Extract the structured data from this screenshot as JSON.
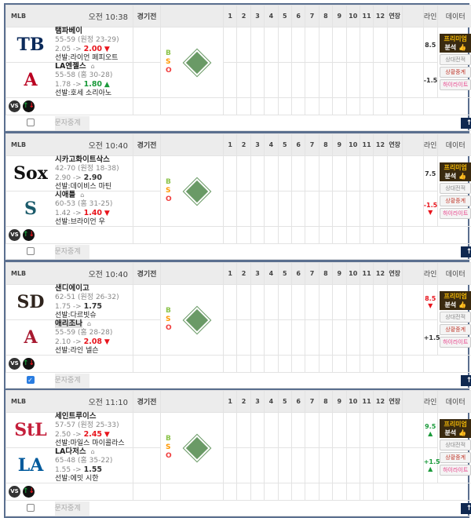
{
  "labels": {
    "league": "MLB",
    "status": "경기전",
    "innings": [
      "1",
      "2",
      "3",
      "4",
      "5",
      "6",
      "7",
      "8",
      "9",
      "10",
      "11",
      "12",
      "연장"
    ],
    "line": "라인",
    "data": "데이터",
    "b": "B",
    "s": "S",
    "o": "O",
    "premium1": "프리미엄",
    "premium2": "분석",
    "h2h": "상대전적",
    "live": "상황중계",
    "highlight": "하이라이트",
    "sms": "문자중계",
    "vs": "VS",
    "arrow_sep": "->"
  },
  "colors": {
    "up": "#1a9a3a",
    "down": "#e8141c",
    "b": "#8bc34a",
    "s": "#ff9800",
    "o": "#f03c3c"
  },
  "games": [
    {
      "time": "오전 10:38",
      "checked": false,
      "teams": [
        {
          "logo": "TB",
          "logo_color": "#0b2a5a",
          "name": "탬파베이",
          "record": "55-59 (원정 23-29)",
          "odds_from": "2.05",
          "odds_to": "2.00",
          "trend": "down",
          "starter": "선발:라이언 페피오트",
          "home": false,
          "line": "8.5",
          "line_trend": ""
        },
        {
          "logo": "A",
          "logo_color": "#ba0021",
          "name": "LA엔젤스",
          "record": "55-58 (홈 30-28)",
          "odds_from": "1.78",
          "odds_to": "1.80",
          "trend": "up",
          "starter": "선발:호세 소리아노",
          "home": true,
          "line": "-1.5",
          "line_trend": ""
        }
      ]
    },
    {
      "time": "오전 10:40",
      "checked": false,
      "teams": [
        {
          "logo": "Sox",
          "logo_color": "#111",
          "name": "시카고화이트삭스",
          "record": "42-70 (원정 18-38)",
          "odds_from": "2.90",
          "odds_to": "2.90",
          "trend": "",
          "starter": "선발:데이비스 마틴",
          "home": false,
          "line": "7.5",
          "line_trend": ""
        },
        {
          "logo": "S",
          "logo_color": "#1a5a6a",
          "name": "시애틀",
          "record": "60-53 (홈 31-25)",
          "odds_from": "1.42",
          "odds_to": "1.40",
          "trend": "down",
          "starter": "선발:브라이언 우",
          "home": true,
          "line": "-1.5",
          "line_trend": "down"
        }
      ]
    },
    {
      "time": "오전 10:40",
      "checked": true,
      "teams": [
        {
          "logo": "SD",
          "logo_color": "#2f241d",
          "name": "샌디에이고",
          "record": "62-51 (원정 26-32)",
          "odds_from": "1.75",
          "odds_to": "1.75",
          "trend": "",
          "starter": "선발:다르빗슈",
          "home": false,
          "line": "8.5",
          "line_trend": "down"
        },
        {
          "logo": "A",
          "logo_color": "#a71930",
          "name": "애리조나",
          "record": "55-59 (홈 28-28)",
          "odds_from": "2.10",
          "odds_to": "2.08",
          "trend": "down",
          "starter": "선발:라인 넬슨",
          "home": true,
          "line": "+1.5",
          "line_trend": "",
          "highlight": true
        }
      ]
    },
    {
      "time": "오전 11:10",
      "checked": false,
      "teams": [
        {
          "logo": "StL",
          "logo_color": "#c41e3a",
          "name": "세인트루이스",
          "record": "57-57 (원정 25-33)",
          "odds_from": "2.50",
          "odds_to": "2.45",
          "trend": "down",
          "starter": "선발:마일스 마이콜라스",
          "home": false,
          "line": "9.5",
          "line_trend": "up"
        },
        {
          "logo": "LA",
          "logo_color": "#005a9c",
          "name": "LA다저스",
          "record": "65-48 (홈 35-22)",
          "odds_from": "1.55",
          "odds_to": "1.55",
          "trend": "",
          "starter": "선발:에밋 시한",
          "home": true,
          "line": "+1.5",
          "line_trend": "up"
        }
      ]
    }
  ]
}
